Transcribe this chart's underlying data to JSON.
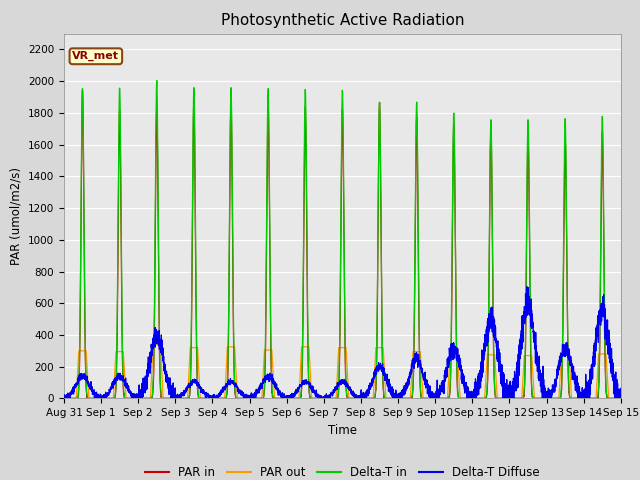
{
  "title": "Photosynthetic Active Radiation",
  "ylabel": "PAR (umol/m2/s)",
  "xlabel": "Time",
  "annotation": "VR_met",
  "ylim": [
    0,
    2300
  ],
  "bg_color": "#d8d8d8",
  "plot_bg_color": "#e8e8e8",
  "legend_entries": [
    "PAR in",
    "PAR out",
    "Delta-T in",
    "Delta-T Diffuse"
  ],
  "line_colors": [
    "#cc0000",
    "#ff9900",
    "#00cc00",
    "#0000ee"
  ],
  "n_days": 15,
  "day_labels": [
    "Aug 31",
    "Sep 1",
    "Sep 2",
    "Sep 3",
    "Sep 4",
    "Sep 5",
    "Sep 6",
    "Sep 7",
    "Sep 8",
    "Sep 9",
    "Sep 10",
    "Sep 11",
    "Sep 12",
    "Sep 13",
    "Sep 14",
    "Sep 15"
  ],
  "peaks_par_in": [
    1940,
    1820,
    1820,
    1870,
    1870,
    1830,
    1840,
    1820,
    1860,
    1780,
    1730,
    1700,
    1650,
    1640,
    1680
  ],
  "peaks_par_out": [
    300,
    295,
    340,
    320,
    325,
    305,
    325,
    320,
    320,
    295,
    280,
    275,
    270,
    285,
    280
  ],
  "peaks_delta_t": [
    1960,
    1960,
    2000,
    1960,
    1960,
    1950,
    1950,
    1940,
    1870,
    1870,
    1800,
    1760,
    1760,
    1760,
    1780
  ],
  "peaks_diffuse": [
    140,
    140,
    400,
    105,
    105,
    140,
    105,
    105,
    200,
    250,
    320,
    490,
    600,
    320,
    560
  ]
}
